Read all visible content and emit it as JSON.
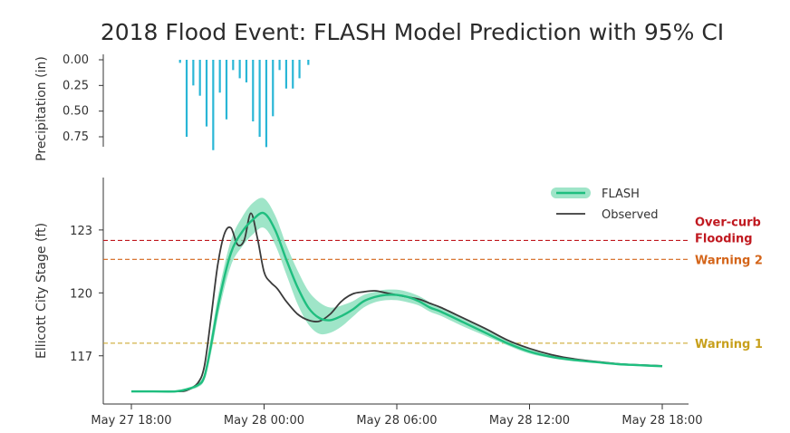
{
  "title": "2018 Flood Event: FLASH Model Prediction with 95% CI",
  "colors": {
    "precip": "#29b6d6",
    "flash": "#1fbe7f",
    "ci": "#7fdcb5",
    "observed": "#3a3a3a",
    "overcurb": "#c0181f",
    "warning2": "#d4651a",
    "warning1": "#c8a01c"
  },
  "chart_data": [
    {
      "type": "bar",
      "panel": "precipitation",
      "ylabel": "Precipitation (in)",
      "yticks": [
        "0.00",
        "0.25",
        "0.50",
        "0.75"
      ],
      "ylim": [
        0,
        0.9
      ],
      "inverted_y": true,
      "x_unit": "hours since May 27 18:00",
      "x": [
        2.2,
        2.5,
        2.8,
        3.1,
        3.4,
        3.7,
        4.0,
        4.3,
        4.6,
        4.9,
        5.2,
        5.5,
        5.8,
        6.1,
        6.4,
        6.7,
        7.0,
        7.3,
        7.6,
        8.0
      ],
      "values": [
        0.03,
        0.75,
        0.25,
        0.35,
        0.65,
        0.88,
        0.32,
        0.58,
        0.1,
        0.18,
        0.22,
        0.6,
        0.75,
        0.85,
        0.55,
        0.1,
        0.28,
        0.28,
        0.18,
        0.05
      ]
    },
    {
      "type": "line",
      "panel": "stage",
      "ylabel": "Ellicott City Stage (ft)",
      "yticks": [
        "117",
        "120",
        "123"
      ],
      "ylim": [
        114.7,
        125.5
      ],
      "xlim": [
        -1.2,
        25.2
      ],
      "xticks": [
        {
          "at": 0,
          "label": "May 27 18:00"
        },
        {
          "at": 6,
          "label": "May 28 00:00"
        },
        {
          "at": 12,
          "label": "May 28 06:00"
        },
        {
          "at": 18,
          "label": "May 28 12:00"
        },
        {
          "at": 24,
          "label": "May 28 18:00"
        }
      ],
      "legend": {
        "placement": "top-right",
        "entries": [
          "FLASH",
          "Observed"
        ]
      },
      "series": [
        {
          "name": "FLASH",
          "x": [
            0,
            1,
            2,
            2.5,
            3,
            3.3,
            3.6,
            4,
            4.5,
            5,
            5.5,
            6,
            6.5,
            7,
            7.5,
            8,
            8.5,
            9,
            9.5,
            10,
            10.5,
            11,
            11.5,
            12,
            12.5,
            13,
            13.5,
            14,
            15,
            16,
            17,
            18,
            19,
            20,
            21,
            22,
            23,
            24
          ],
          "values": [
            115.3,
            115.3,
            115.3,
            115.4,
            115.6,
            116.0,
            117.5,
            119.8,
            121.9,
            122.9,
            123.5,
            123.8,
            123.0,
            121.6,
            120.3,
            119.3,
            118.8,
            118.7,
            118.9,
            119.2,
            119.6,
            119.8,
            119.9,
            119.9,
            119.8,
            119.6,
            119.3,
            119.1,
            118.6,
            118.1,
            117.6,
            117.2,
            116.95,
            116.8,
            116.7,
            116.6,
            116.55,
            116.5
          ]
        },
        {
          "name": "95% CI lower",
          "x": [
            0,
            1,
            2,
            2.5,
            3,
            3.3,
            3.6,
            4,
            4.5,
            5,
            5.5,
            6,
            6.5,
            7,
            7.5,
            8,
            8.5,
            9,
            9.5,
            10,
            10.5,
            11,
            11.5,
            12,
            12.5,
            13,
            13.5,
            14,
            15,
            16,
            17,
            18,
            19,
            20,
            21,
            22,
            23,
            24
          ],
          "values": [
            115.25,
            115.25,
            115.25,
            115.35,
            115.5,
            115.85,
            117.1,
            119.3,
            121.3,
            122.2,
            122.8,
            123.1,
            122.3,
            120.9,
            119.5,
            118.5,
            118.05,
            118.1,
            118.4,
            118.85,
            119.3,
            119.55,
            119.65,
            119.65,
            119.55,
            119.4,
            119.1,
            118.9,
            118.4,
            117.95,
            117.5,
            117.1,
            116.88,
            116.74,
            116.66,
            116.57,
            116.52,
            116.47
          ]
        },
        {
          "name": "95% CI upper",
          "x": [
            0,
            1,
            2,
            2.5,
            3,
            3.3,
            3.6,
            4,
            4.5,
            5,
            5.5,
            6,
            6.5,
            7,
            7.5,
            8,
            8.5,
            9,
            9.5,
            10,
            10.5,
            11,
            11.5,
            12,
            12.5,
            13,
            13.5,
            14,
            15,
            16,
            17,
            18,
            19,
            20,
            21,
            22,
            23,
            24
          ],
          "values": [
            115.35,
            115.35,
            115.35,
            115.45,
            115.7,
            116.2,
            117.9,
            120.3,
            122.5,
            123.6,
            124.3,
            124.5,
            123.7,
            122.3,
            121.1,
            120.1,
            119.55,
            119.3,
            119.4,
            119.6,
            119.9,
            120.05,
            120.15,
            120.15,
            120.05,
            119.85,
            119.55,
            119.3,
            118.8,
            118.3,
            117.75,
            117.35,
            117.05,
            116.88,
            116.76,
            116.65,
            116.6,
            116.55
          ]
        },
        {
          "name": "Observed",
          "x": [
            0,
            1,
            2,
            2.5,
            3,
            3.3,
            3.6,
            3.9,
            4.2,
            4.5,
            4.8,
            5.1,
            5.4,
            5.7,
            6.0,
            6.3,
            6.6,
            7.0,
            7.5,
            8.0,
            8.5,
            9.0,
            9.5,
            10.0,
            10.5,
            11.0,
            11.5,
            12.0,
            12.5,
            13.0,
            13.5,
            14.0,
            15,
            16,
            17,
            18,
            19,
            20,
            21,
            22,
            23,
            24
          ],
          "values": [
            115.3,
            115.3,
            115.3,
            115.35,
            115.7,
            116.5,
            118.8,
            121.3,
            122.8,
            123.1,
            122.3,
            122.5,
            123.8,
            122.6,
            121.0,
            120.5,
            120.2,
            119.6,
            119.0,
            118.7,
            118.65,
            119.0,
            119.6,
            119.95,
            120.05,
            120.1,
            120.0,
            119.9,
            119.8,
            119.7,
            119.5,
            119.3,
            118.8,
            118.3,
            117.75,
            117.35,
            117.05,
            116.85,
            116.72,
            116.62,
            116.56,
            116.52
          ]
        }
      ],
      "thresholds": [
        {
          "label": "Over-curb Flooding",
          "value": 122.5,
          "color_key": "overcurb"
        },
        {
          "label": "Warning 2",
          "value": 121.6,
          "color_key": "warning2"
        },
        {
          "label": "Warning 1",
          "value": 117.6,
          "color_key": "warning1"
        }
      ]
    }
  ]
}
